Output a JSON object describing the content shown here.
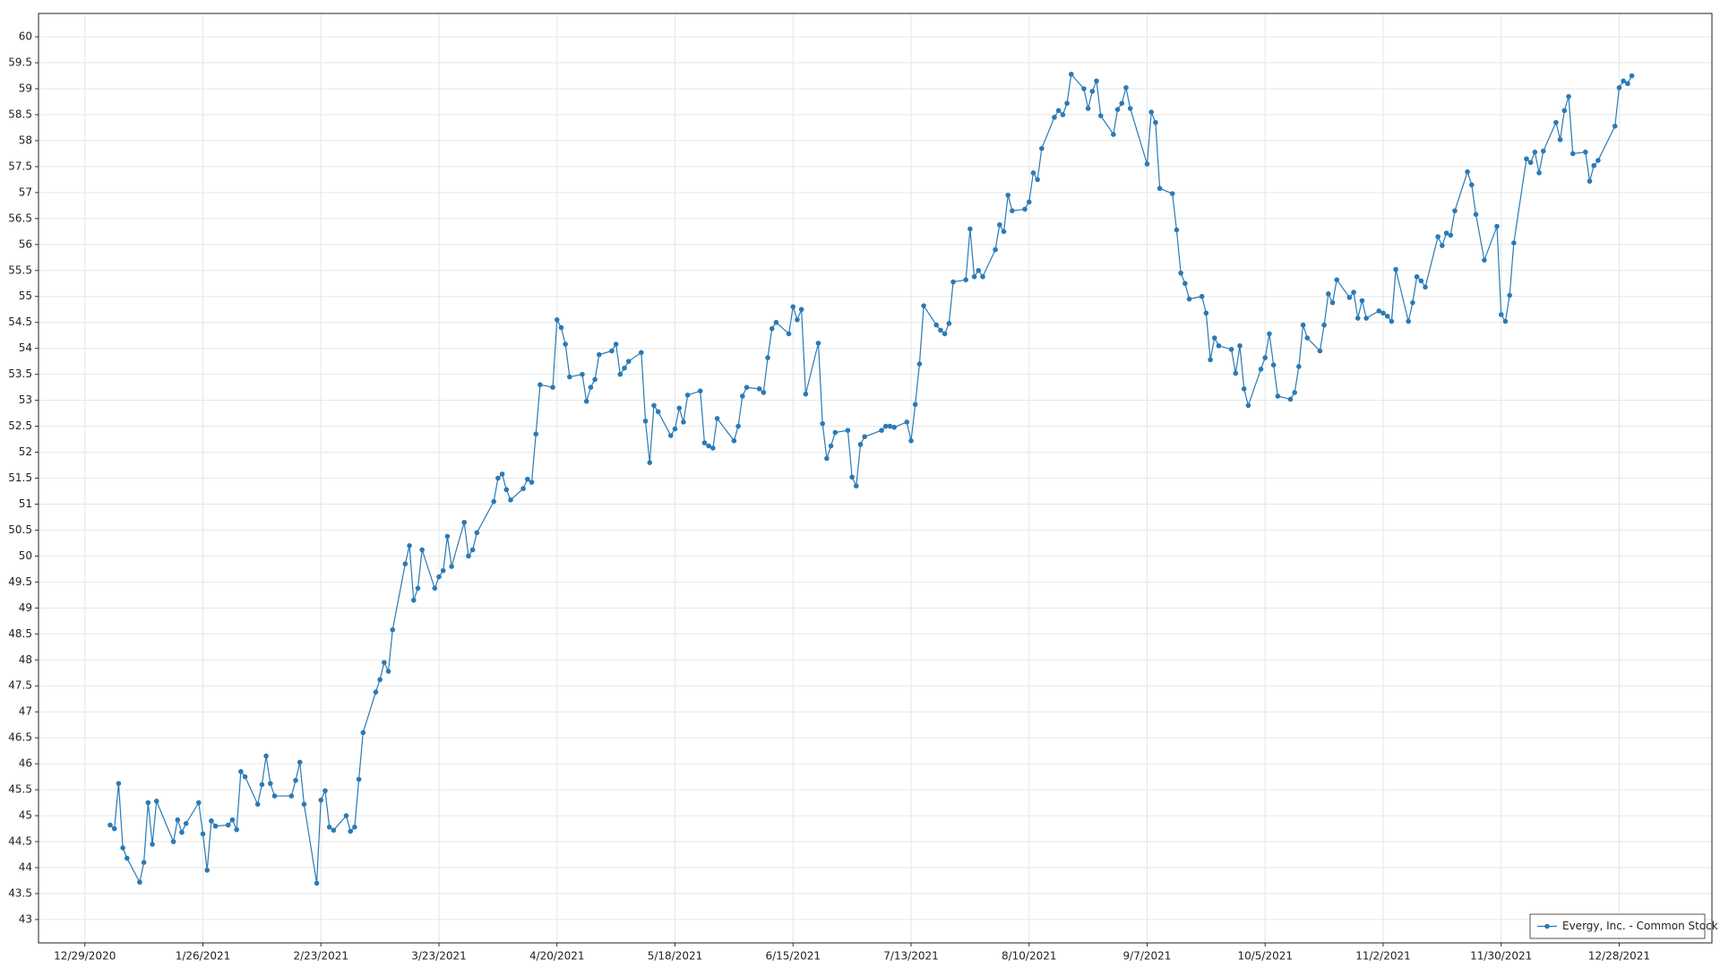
{
  "chart_data": {
    "type": "line",
    "x": [
      "2021-01-04",
      "2021-01-05",
      "2021-01-06",
      "2021-01-07",
      "2021-01-08",
      "2021-01-11",
      "2021-01-12",
      "2021-01-13",
      "2021-01-14",
      "2021-01-15",
      "2021-01-19",
      "2021-01-20",
      "2021-01-21",
      "2021-01-22",
      "2021-01-25",
      "2021-01-26",
      "2021-01-27",
      "2021-01-28",
      "2021-01-29",
      "2021-02-01",
      "2021-02-02",
      "2021-02-03",
      "2021-02-04",
      "2021-02-05",
      "2021-02-08",
      "2021-02-09",
      "2021-02-10",
      "2021-02-11",
      "2021-02-12",
      "2021-02-16",
      "2021-02-17",
      "2021-02-18",
      "2021-02-19",
      "2021-02-22",
      "2021-02-23",
      "2021-02-24",
      "2021-02-25",
      "2021-02-26",
      "2021-03-01",
      "2021-03-02",
      "2021-03-03",
      "2021-03-04",
      "2021-03-05",
      "2021-03-08",
      "2021-03-09",
      "2021-03-10",
      "2021-03-11",
      "2021-03-12",
      "2021-03-15",
      "2021-03-16",
      "2021-03-17",
      "2021-03-18",
      "2021-03-19",
      "2021-03-22",
      "2021-03-23",
      "2021-03-24",
      "2021-03-25",
      "2021-03-26",
      "2021-03-29",
      "2021-03-30",
      "2021-03-31",
      "2021-04-01",
      "2021-04-05",
      "2021-04-06",
      "2021-04-07",
      "2021-04-08",
      "2021-04-09",
      "2021-04-12",
      "2021-04-13",
      "2021-04-14",
      "2021-04-15",
      "2021-04-16",
      "2021-04-19",
      "2021-04-20",
      "2021-04-21",
      "2021-04-22",
      "2021-04-23",
      "2021-04-26",
      "2021-04-27",
      "2021-04-28",
      "2021-04-29",
      "2021-04-30",
      "2021-05-03",
      "2021-05-04",
      "2021-05-05",
      "2021-05-06",
      "2021-05-07",
      "2021-05-10",
      "2021-05-11",
      "2021-05-12",
      "2021-05-13",
      "2021-05-14",
      "2021-05-17",
      "2021-05-18",
      "2021-05-19",
      "2021-05-20",
      "2021-05-21",
      "2021-05-24",
      "2021-05-25",
      "2021-05-26",
      "2021-05-27",
      "2021-05-28",
      "2021-06-01",
      "2021-06-02",
      "2021-06-03",
      "2021-06-04",
      "2021-06-07",
      "2021-06-08",
      "2021-06-09",
      "2021-06-10",
      "2021-06-11",
      "2021-06-14",
      "2021-06-15",
      "2021-06-16",
      "2021-06-17",
      "2021-06-18",
      "2021-06-21",
      "2021-06-22",
      "2021-06-23",
      "2021-06-24",
      "2021-06-25",
      "2021-06-28",
      "2021-06-29",
      "2021-06-30",
      "2021-07-01",
      "2021-07-02",
      "2021-07-06",
      "2021-07-07",
      "2021-07-08",
      "2021-07-09",
      "2021-07-12",
      "2021-07-13",
      "2021-07-14",
      "2021-07-15",
      "2021-07-16",
      "2021-07-19",
      "2021-07-20",
      "2021-07-21",
      "2021-07-22",
      "2021-07-23",
      "2021-07-26",
      "2021-07-27",
      "2021-07-28",
      "2021-07-29",
      "2021-07-30",
      "2021-08-02",
      "2021-08-03",
      "2021-08-04",
      "2021-08-05",
      "2021-08-06",
      "2021-08-09",
      "2021-08-10",
      "2021-08-11",
      "2021-08-12",
      "2021-08-13",
      "2021-08-16",
      "2021-08-17",
      "2021-08-18",
      "2021-08-19",
      "2021-08-20",
      "2021-08-23",
      "2021-08-24",
      "2021-08-25",
      "2021-08-26",
      "2021-08-27",
      "2021-08-30",
      "2021-08-31",
      "2021-09-01",
      "2021-09-02",
      "2021-09-03",
      "2021-09-07",
      "2021-09-08",
      "2021-09-09",
      "2021-09-10",
      "2021-09-13",
      "2021-09-14",
      "2021-09-15",
      "2021-09-16",
      "2021-09-17",
      "2021-09-20",
      "2021-09-21",
      "2021-09-22",
      "2021-09-23",
      "2021-09-24",
      "2021-09-27",
      "2021-09-28",
      "2021-09-29",
      "2021-09-30",
      "2021-10-01",
      "2021-10-04",
      "2021-10-05",
      "2021-10-06",
      "2021-10-07",
      "2021-10-08",
      "2021-10-11",
      "2021-10-12",
      "2021-10-13",
      "2021-10-14",
      "2021-10-15",
      "2021-10-18",
      "2021-10-19",
      "2021-10-20",
      "2021-10-21",
      "2021-10-22",
      "2021-10-25",
      "2021-10-26",
      "2021-10-27",
      "2021-10-28",
      "2021-10-29",
      "2021-11-01",
      "2021-11-02",
      "2021-11-03",
      "2021-11-04",
      "2021-11-05",
      "2021-11-08",
      "2021-11-09",
      "2021-11-10",
      "2021-11-11",
      "2021-11-12",
      "2021-11-15",
      "2021-11-16",
      "2021-11-17",
      "2021-11-18",
      "2021-11-19",
      "2021-11-22",
      "2021-11-23",
      "2021-11-24",
      "2021-11-26",
      "2021-11-29",
      "2021-11-30",
      "2021-12-01",
      "2021-12-02",
      "2021-12-03",
      "2021-12-06",
      "2021-12-07",
      "2021-12-08",
      "2021-12-09",
      "2021-12-10",
      "2021-12-13",
      "2021-12-14",
      "2021-12-15",
      "2021-12-16",
      "2021-12-17",
      "2021-12-20",
      "2021-12-21",
      "2021-12-22",
      "2021-12-23",
      "2021-12-27",
      "2021-12-28",
      "2021-12-29",
      "2021-12-30",
      "2021-12-31"
    ],
    "series": [
      {
        "name": "Evergy, Inc. - Common Stock",
        "color": "#2a7ab5",
        "values": [
          44.82,
          44.75,
          45.62,
          44.38,
          44.18,
          43.72,
          44.1,
          45.25,
          44.45,
          45.28,
          44.5,
          44.92,
          44.68,
          44.85,
          45.25,
          44.65,
          43.95,
          44.9,
          44.8,
          44.82,
          44.92,
          44.73,
          45.85,
          45.75,
          45.22,
          45.6,
          46.15,
          45.62,
          45.38,
          45.38,
          45.68,
          46.03,
          45.22,
          43.7,
          45.3,
          45.48,
          44.78,
          44.72,
          45.0,
          44.7,
          44.78,
          45.7,
          46.6,
          47.38,
          47.62,
          47.95,
          47.78,
          48.58,
          49.85,
          50.2,
          49.15,
          49.38,
          50.12,
          49.38,
          49.6,
          49.72,
          50.38,
          49.8,
          50.65,
          50.0,
          50.12,
          50.45,
          51.05,
          51.5,
          51.58,
          51.28,
          51.08,
          51.3,
          51.48,
          51.42,
          52.35,
          53.3,
          53.25,
          54.55,
          54.4,
          54.08,
          53.45,
          53.5,
          52.98,
          53.25,
          53.4,
          53.88,
          53.95,
          54.08,
          53.5,
          53.62,
          53.75,
          53.92,
          52.6,
          51.8,
          52.9,
          52.78,
          52.32,
          52.45,
          52.85,
          52.58,
          53.1,
          53.18,
          52.18,
          52.12,
          52.08,
          52.65,
          52.22,
          52.5,
          53.08,
          53.25,
          53.22,
          53.15,
          53.82,
          54.38,
          54.5,
          54.28,
          54.8,
          54.55,
          54.75,
          53.12,
          54.1,
          52.55,
          51.88,
          52.12,
          52.38,
          52.42,
          51.52,
          51.35,
          52.15,
          52.3,
          52.42,
          52.5,
          52.5,
          52.48,
          52.58,
          52.22,
          52.92,
          53.7,
          54.82,
          54.45,
          54.35,
          54.28,
          54.48,
          55.28,
          55.32,
          56.3,
          55.38,
          55.5,
          55.38,
          55.9,
          56.38,
          56.25,
          56.95,
          56.65,
          56.68,
          56.82,
          57.38,
          57.25,
          57.85,
          58.45,
          58.58,
          58.5,
          58.72,
          59.28,
          59.0,
          58.62,
          58.95,
          59.15,
          58.48,
          58.12,
          58.6,
          58.72,
          59.02,
          58.62,
          57.55,
          58.55,
          58.35,
          57.08,
          56.98,
          56.28,
          55.45,
          55.25,
          54.95,
          55.0,
          54.68,
          53.78,
          54.2,
          54.05,
          53.98,
          53.52,
          54.05,
          53.22,
          52.9,
          53.6,
          53.82,
          54.28,
          53.68,
          53.08,
          53.02,
          53.15,
          53.65,
          54.45,
          54.2,
          53.95,
          54.45,
          55.05,
          54.88,
          55.32,
          54.98,
          55.08,
          54.58,
          54.92,
          54.58,
          54.72,
          54.68,
          54.62,
          54.52,
          55.52,
          54.52,
          54.88,
          55.38,
          55.3,
          55.18,
          56.15,
          55.98,
          56.22,
          56.18,
          56.65,
          57.4,
          57.15,
          56.58,
          55.7,
          56.35,
          54.65,
          54.52,
          55.02,
          56.03,
          57.65,
          57.58,
          57.78,
          57.38,
          57.8,
          58.35,
          58.02,
          58.58,
          58.85,
          57.75,
          57.78,
          57.22,
          57.52,
          57.62,
          58.28,
          59.02,
          59.15,
          59.1,
          59.25
        ]
      }
    ],
    "xlim": [
      "2020-12-18",
      "2022-01-19"
    ],
    "xticks": [
      {
        "value": "2020-12-29",
        "label": "12/29/2020"
      },
      {
        "value": "2021-01-26",
        "label": "1/26/2021"
      },
      {
        "value": "2021-02-23",
        "label": "2/23/2021"
      },
      {
        "value": "2021-03-23",
        "label": "3/23/2021"
      },
      {
        "value": "2021-04-20",
        "label": "4/20/2021"
      },
      {
        "value": "2021-05-18",
        "label": "5/18/2021"
      },
      {
        "value": "2021-06-15",
        "label": "6/15/2021"
      },
      {
        "value": "2021-07-13",
        "label": "7/13/2021"
      },
      {
        "value": "2021-08-10",
        "label": "8/10/2021"
      },
      {
        "value": "2021-09-07",
        "label": "9/7/2021"
      },
      {
        "value": "2021-10-05",
        "label": "10/5/2021"
      },
      {
        "value": "2021-11-02",
        "label": "11/2/2021"
      },
      {
        "value": "2021-11-30",
        "label": "11/30/2021"
      },
      {
        "value": "2021-12-28",
        "label": "12/28/2021"
      }
    ],
    "ylim": [
      42.55,
      60.45
    ],
    "yticks": [
      43,
      43.5,
      44,
      44.5,
      45,
      45.5,
      46,
      46.5,
      47,
      47.5,
      48,
      48.5,
      49,
      49.5,
      50,
      50.5,
      51,
      51.5,
      52,
      52.5,
      53,
      53.5,
      54,
      54.5,
      55,
      55.5,
      56,
      56.5,
      57,
      57.5,
      58,
      58.5,
      59,
      59.5,
      60
    ],
    "grid": true,
    "legend": "lower right"
  }
}
